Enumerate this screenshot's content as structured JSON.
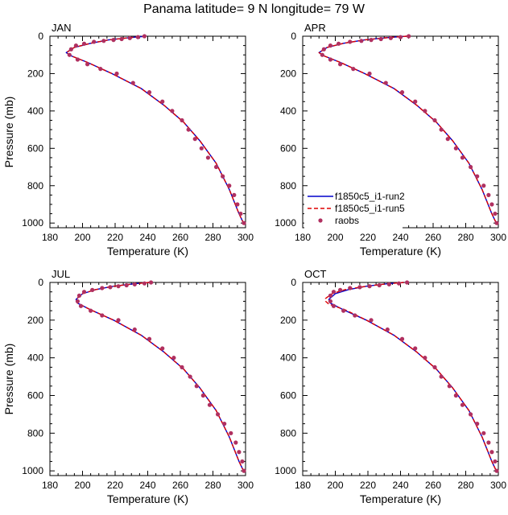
{
  "figure": {
    "title": "Panama  latitude= 9 N longitude= 79 W"
  },
  "style": {
    "run2_color": "#0000cc",
    "run5_color": "#dd0000",
    "raobs_color": "#b03060"
  },
  "legend": {
    "entries": [
      "f1850c5_i1-run2",
      "f1850c5_i1-run5",
      "raobs"
    ],
    "placement": "in APR panel, bottom-left"
  },
  "chart_data": [
    {
      "type": "line",
      "panel": "JAN",
      "xlabel": "Temperature (K)",
      "ylabel": "Pressure (mb)",
      "xlim": [
        180,
        300
      ],
      "ylim": [
        1025,
        0
      ],
      "y_reversed": true,
      "xticks": [
        180,
        200,
        220,
        240,
        260,
        280,
        300
      ],
      "yticks": [
        0,
        200,
        400,
        600,
        800,
        1000
      ],
      "series": [
        {
          "name": "f1850c5_i1-run2",
          "style": "solid",
          "x": [
            239,
            230,
            216,
            205,
            195,
            190,
            193,
            203,
            218,
            236,
            250,
            262,
            272,
            282,
            290,
            296,
            299
          ],
          "y": [
            0,
            7,
            20,
            38,
            60,
            88,
            105,
            140,
            200,
            280,
            370,
            460,
            560,
            680,
            820,
            950,
            1005
          ]
        },
        {
          "name": "f1850c5_i1-run5",
          "style": "dashed",
          "x": [
            239,
            230,
            216,
            205,
            195,
            190,
            193,
            203,
            218,
            236,
            250,
            262,
            272,
            282,
            290,
            296,
            299
          ],
          "y": [
            0,
            7,
            20,
            38,
            60,
            88,
            105,
            140,
            200,
            280,
            370,
            460,
            560,
            680,
            820,
            950,
            1005
          ]
        },
        {
          "name": "raobs",
          "style": "markers",
          "x": [
            238,
            234,
            229,
            224,
            219,
            213,
            207,
            201,
            196,
            193,
            192,
            197,
            203,
            211,
            221,
            231,
            241,
            249,
            255,
            261,
            265,
            269,
            273,
            277,
            282,
            286,
            290,
            293,
            295,
            297,
            299
          ],
          "y": [
            0,
            5,
            10,
            15,
            20,
            25,
            30,
            40,
            50,
            70,
            100,
            125,
            150,
            175,
            200,
            250,
            300,
            350,
            400,
            450,
            500,
            550,
            600,
            650,
            700,
            750,
            800,
            850,
            900,
            950,
            1000
          ]
        }
      ]
    },
    {
      "type": "line",
      "panel": "APR",
      "xlabel": "Temperature (K)",
      "ylabel": "",
      "xlim": [
        180,
        300
      ],
      "ylim": [
        1025,
        0
      ],
      "y_reversed": true,
      "xticks": [
        180,
        200,
        220,
        240,
        260,
        280,
        300
      ],
      "yticks": [
        0,
        200,
        400,
        600,
        800,
        1000
      ],
      "series": [
        {
          "name": "f1850c5_i1-run2",
          "style": "solid",
          "x": [
            244,
            233,
            218,
            205,
            195,
            190,
            193,
            203,
            218,
            236,
            250,
            262,
            272,
            282,
            290,
            296,
            299
          ],
          "y": [
            0,
            7,
            20,
            38,
            60,
            88,
            105,
            140,
            200,
            280,
            370,
            460,
            560,
            680,
            820,
            950,
            1005
          ]
        },
        {
          "name": "f1850c5_i1-run5",
          "style": "dashed",
          "x": [
            244,
            233,
            218,
            205,
            195,
            190,
            193,
            203,
            218,
            236,
            250,
            262,
            272,
            282,
            290,
            296,
            299
          ],
          "y": [
            0,
            7,
            20,
            38,
            60,
            88,
            105,
            140,
            200,
            280,
            370,
            460,
            560,
            680,
            820,
            950,
            1005
          ]
        },
        {
          "name": "raobs",
          "style": "markers",
          "x": [
            245,
            240,
            234,
            228,
            222,
            216,
            209,
            202,
            197,
            193,
            192,
            197,
            203,
            211,
            221,
            231,
            241,
            249,
            255,
            261,
            265,
            269,
            274,
            278,
            283,
            287,
            291,
            294,
            296,
            298,
            299
          ],
          "y": [
            0,
            5,
            10,
            15,
            20,
            25,
            30,
            40,
            50,
            70,
            100,
            125,
            150,
            175,
            200,
            250,
            300,
            350,
            400,
            450,
            500,
            550,
            600,
            650,
            700,
            750,
            800,
            850,
            900,
            950,
            1000
          ]
        }
      ]
    },
    {
      "type": "line",
      "panel": "JUL",
      "xlabel": "Temperature (K)",
      "ylabel": "Pressure (mb)",
      "xlim": [
        180,
        300
      ],
      "ylim": [
        1025,
        0
      ],
      "y_reversed": true,
      "xticks": [
        180,
        200,
        220,
        240,
        260,
        280,
        300
      ],
      "yticks": [
        0,
        200,
        400,
        600,
        800,
        1000
      ],
      "series": [
        {
          "name": "f1850c5_i1-run2",
          "style": "solid",
          "x": [
            241,
            232,
            219,
            208,
            200,
            196,
            197,
            205,
            219,
            236,
            250,
            262,
            272,
            282,
            290,
            296,
            299
          ],
          "y": [
            0,
            7,
            20,
            38,
            60,
            90,
            110,
            145,
            200,
            280,
            370,
            460,
            560,
            680,
            820,
            950,
            1005
          ]
        },
        {
          "name": "f1850c5_i1-run5",
          "style": "dashed",
          "x": [
            241,
            232,
            219,
            208,
            200,
            196,
            197,
            205,
            219,
            236,
            250,
            262,
            272,
            282,
            290,
            296,
            299
          ],
          "y": [
            0,
            7,
            20,
            38,
            60,
            90,
            110,
            145,
            200,
            280,
            370,
            460,
            560,
            680,
            820,
            950,
            1005
          ]
        },
        {
          "name": "raobs",
          "style": "markers",
          "x": [
            242,
            238,
            232,
            227,
            222,
            217,
            212,
            206,
            201,
            198,
            197,
            199,
            205,
            212,
            222,
            232,
            241,
            249,
            256,
            261,
            266,
            270,
            274,
            278,
            283,
            287,
            291,
            294,
            296,
            298,
            299
          ],
          "y": [
            0,
            5,
            10,
            15,
            20,
            25,
            30,
            40,
            50,
            70,
            100,
            125,
            150,
            175,
            200,
            250,
            300,
            350,
            400,
            450,
            500,
            550,
            600,
            650,
            700,
            750,
            800,
            850,
            900,
            950,
            1000
          ]
        }
      ]
    },
    {
      "type": "line",
      "panel": "OCT",
      "xlabel": "Temperature (K)",
      "ylabel": "",
      "xlim": [
        180,
        300
      ],
      "ylim": [
        1025,
        0
      ],
      "y_reversed": true,
      "xticks": [
        180,
        200,
        220,
        240,
        260,
        280,
        300
      ],
      "yticks": [
        0,
        200,
        400,
        600,
        800,
        1000
      ],
      "series": [
        {
          "name": "f1850c5_i1-run2",
          "style": "solid",
          "x": [
            242,
            232,
            219,
            208,
            200,
            196,
            197,
            205,
            219,
            236,
            250,
            262,
            272,
            282,
            290,
            296,
            299
          ],
          "y": [
            0,
            7,
            20,
            38,
            60,
            90,
            110,
            145,
            200,
            280,
            370,
            460,
            560,
            680,
            820,
            950,
            1005
          ]
        },
        {
          "name": "f1850c5_i1-run5",
          "style": "dashed",
          "x": [
            242,
            232,
            219,
            206,
            198,
            194,
            194,
            196,
            206,
            219,
            236,
            250,
            262,
            272,
            282,
            290,
            296,
            299
          ],
          "y": [
            0,
            7,
            20,
            38,
            60,
            85,
            100,
            115,
            145,
            200,
            280,
            370,
            460,
            560,
            680,
            820,
            950,
            1005
          ]
        },
        {
          "name": "raobs",
          "style": "markers",
          "x": [
            244,
            239,
            233,
            227,
            221,
            215,
            209,
            203,
            199,
            197,
            197,
            199,
            205,
            212,
            222,
            232,
            241,
            249,
            255,
            261,
            265,
            270,
            274,
            278,
            283,
            287,
            291,
            294,
            296,
            298,
            299
          ],
          "y": [
            0,
            5,
            10,
            15,
            20,
            25,
            30,
            40,
            50,
            70,
            100,
            125,
            150,
            175,
            200,
            250,
            300,
            350,
            400,
            450,
            500,
            550,
            600,
            650,
            700,
            750,
            800,
            850,
            900,
            950,
            1000
          ]
        }
      ]
    }
  ]
}
